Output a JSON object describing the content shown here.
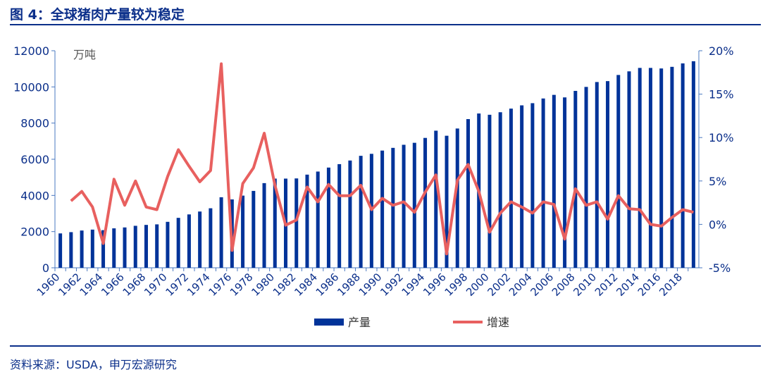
{
  "title": "图 4：全球猪肉产量较为稳定",
  "source": "资料来源：USDA，申万宏源研究",
  "chart_data": {
    "type": "bar+line",
    "unit_label": "万吨",
    "x": [
      1960,
      1961,
      1962,
      1963,
      1964,
      1965,
      1966,
      1967,
      1968,
      1969,
      1970,
      1971,
      1972,
      1973,
      1974,
      1975,
      1976,
      1977,
      1978,
      1979,
      1980,
      1981,
      1982,
      1983,
      1984,
      1985,
      1986,
      1987,
      1988,
      1989,
      1990,
      1991,
      1992,
      1993,
      1994,
      1995,
      1996,
      1997,
      1998,
      1999,
      2000,
      2001,
      2002,
      2003,
      2004,
      2005,
      2006,
      2007,
      2008,
      2009,
      2010,
      2011,
      2012,
      2013,
      2014,
      2015,
      2016,
      2017,
      2018,
      2019
    ],
    "series": [
      {
        "name": "产量",
        "type": "bar",
        "axis": "left",
        "color": "#003399",
        "values": [
          1900,
          1970,
          2060,
          2110,
          2080,
          2180,
          2230,
          2320,
          2370,
          2400,
          2540,
          2760,
          2950,
          3110,
          3290,
          3900,
          3780,
          3990,
          4250,
          4680,
          4930,
          4930,
          4940,
          5150,
          5320,
          5540,
          5730,
          5930,
          6190,
          6300,
          6480,
          6630,
          6800,
          6910,
          7180,
          7580,
          7300,
          7700,
          8220,
          8530,
          8460,
          8600,
          8800,
          8980,
          9100,
          9360,
          9560,
          9420,
          9780,
          10000,
          10270,
          10320,
          10660,
          10860,
          11050,
          11050,
          11020,
          11110,
          11300,
          11420
        ]
      },
      {
        "name": "增速",
        "type": "line",
        "axis": "right",
        "color": "#e8605f",
        "values": [
          null,
          2.7,
          3.8,
          2.0,
          -2.2,
          5.2,
          2.2,
          5.0,
          2.0,
          1.7,
          5.5,
          8.6,
          6.7,
          4.9,
          6.2,
          18.5,
          -3.0,
          4.7,
          6.5,
          10.5,
          4.5,
          -0.1,
          0.5,
          4.3,
          2.6,
          4.6,
          3.3,
          3.3,
          4.5,
          1.7,
          3.0,
          2.2,
          2.6,
          1.4,
          3.7,
          5.7,
          -3.4,
          5.1,
          6.9,
          3.8,
          -0.9,
          1.3,
          2.6,
          2.0,
          1.3,
          2.6,
          2.3,
          -1.7,
          4.1,
          2.2,
          2.6,
          0.6,
          3.3,
          1.8,
          1.7,
          0.0,
          -0.2,
          0.8,
          1.7,
          1.4
        ]
      }
    ],
    "ylim_left": [
      0,
      12000
    ],
    "yticks_left": [
      "0",
      "2000",
      "4000",
      "6000",
      "8000",
      "10000",
      "12000"
    ],
    "ylim_right": [
      -5,
      20
    ],
    "yticks_right": [
      "-5%",
      "0%",
      "5%",
      "10%",
      "15%",
      "20%"
    ],
    "xtick_labels": [
      "1960",
      "1962",
      "1964",
      "1966",
      "1968",
      "1970",
      "1972",
      "1974",
      "1976",
      "1978",
      "1980",
      "1982",
      "1984",
      "1986",
      "1988",
      "1990",
      "1992",
      "1994",
      "1996",
      "1998",
      "2000",
      "2002",
      "2004",
      "2006",
      "2008",
      "2010",
      "2012",
      "2014",
      "2016",
      "2018"
    ],
    "legend": "bottom"
  }
}
